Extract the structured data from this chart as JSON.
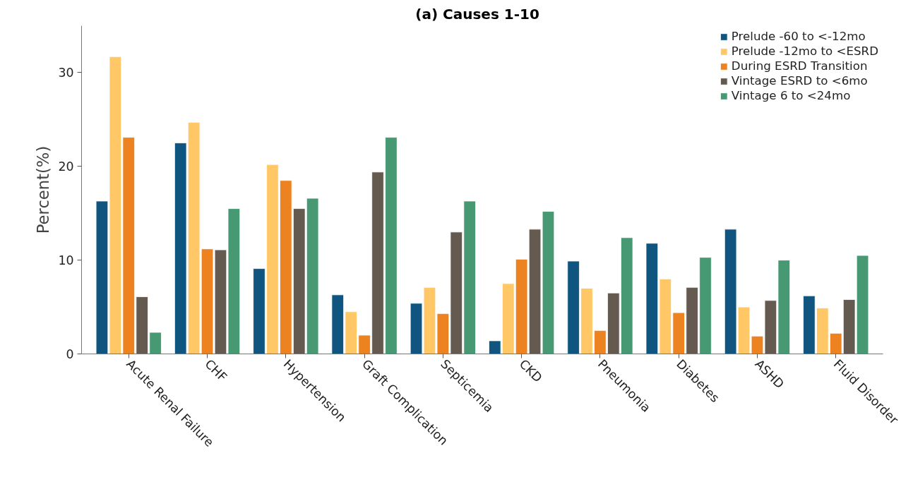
{
  "chart_data": {
    "type": "bar",
    "title": "(a)   Causes 1-10",
    "ylabel": "Percent(%)",
    "categories": [
      "Acute Renal Failure",
      "CHF",
      "Hypertension",
      "Graft Complication",
      "Septicemia",
      "CKD",
      "Pneumonia",
      "Diabetes",
      "ASHD",
      "Fluid Disorder"
    ],
    "series": [
      {
        "name": "Prelude -60 to <-12mo",
        "color": "#0f5580",
        "values": [
          16.3,
          22.5,
          9.1,
          6.3,
          5.4,
          1.4,
          9.9,
          11.8,
          13.3,
          6.2
        ]
      },
      {
        "name": "Prelude -12mo to <ESRD",
        "color": "#ffc766",
        "values": [
          31.7,
          24.7,
          20.2,
          4.5,
          7.1,
          7.5,
          7.0,
          8.0,
          5.0,
          4.9
        ]
      },
      {
        "name": "During ESRD Transition",
        "color": "#ec8220",
        "values": [
          23.1,
          11.2,
          18.5,
          2.0,
          4.3,
          10.1,
          2.5,
          4.4,
          1.9,
          2.2
        ]
      },
      {
        "name": "Vintage ESRD to <6mo",
        "color": "#645a50",
        "values": [
          6.1,
          11.1,
          15.5,
          19.4,
          13.0,
          13.3,
          6.5,
          7.1,
          5.7,
          5.8
        ]
      },
      {
        "name": "Vintage 6 to <24mo",
        "color": "#479973",
        "values": [
          2.3,
          15.5,
          16.6,
          23.1,
          16.3,
          15.2,
          12.4,
          10.3,
          10.0,
          10.5
        ]
      }
    ],
    "ylim": [
      0,
      35
    ],
    "yticks": [
      0,
      10,
      20,
      30
    ],
    "grid": false,
    "legend": "top right"
  }
}
